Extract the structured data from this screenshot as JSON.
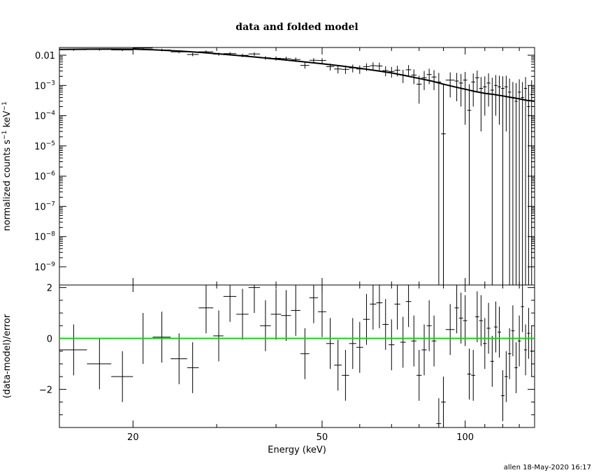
{
  "chart_data": {
    "type": "scatter",
    "title": "data and folded model",
    "xlabel": "Energy (keV)",
    "x_scale": "log",
    "xlim": [
      14,
      140
    ],
    "x_ticks": [
      20,
      50,
      100
    ],
    "footer": "allen 18-May-2020 16:17",
    "colors": {
      "data": "#000000",
      "model": "#000000",
      "zero_line": "#00dd00"
    },
    "top_panel": {
      "ylabel": "normalized counts s^-1 keV^-1",
      "ylabel_parts": {
        "base": "normalized counts s",
        "exp1": "−1",
        "mid": " keV",
        "exp2": "−1"
      },
      "y_scale": "log",
      "ylim": [
        2.5e-10,
        0.018
      ],
      "y_ticks": [
        {
          "value": 0.01,
          "label": "0.01"
        },
        {
          "value": 0.001,
          "base": "10",
          "exp": "−3"
        },
        {
          "value": 0.0001,
          "base": "10",
          "exp": "−4"
        },
        {
          "value": 1e-05,
          "base": "10",
          "exp": "−5"
        },
        {
          "value": 1e-06,
          "base": "10",
          "exp": "−6"
        },
        {
          "value": 1e-07,
          "base": "10",
          "exp": "−7"
        },
        {
          "value": 1e-08,
          "base": "10",
          "exp": "−8"
        },
        {
          "value": 1e-09,
          "base": "10",
          "exp": "−9"
        }
      ],
      "model": {
        "x": [
          14,
          16,
          18,
          20,
          22,
          25,
          28,
          30,
          35,
          40,
          45,
          50,
          55,
          60,
          65,
          70,
          75,
          80,
          85,
          90,
          95,
          100,
          105,
          110,
          115,
          120,
          125,
          130,
          135,
          140
        ],
        "y": [
          0.0155,
          0.0158,
          0.016,
          0.0158,
          0.0152,
          0.0138,
          0.0122,
          0.0112,
          0.0091,
          0.0075,
          0.0062,
          0.0052,
          0.0044,
          0.0037,
          0.0031,
          0.0026,
          0.0021,
          0.0017,
          0.0014,
          0.0011,
          0.0009,
          0.00075,
          0.00063,
          0.00055,
          0.0005,
          0.00045,
          0.0004,
          0.00036,
          0.00032,
          0.0003
        ]
      },
      "points": [
        {
          "x": 15.0,
          "xlo": 14.0,
          "xhi": 16.0,
          "y": 0.0152,
          "ylo": 0.0139,
          "yhi": 0.0166
        },
        {
          "x": 17.0,
          "xlo": 16.0,
          "xhi": 18.0,
          "y": 0.0155,
          "ylo": 0.0142,
          "yhi": 0.0168
        },
        {
          "x": 19.0,
          "xlo": 18.0,
          "xhi": 20.0,
          "y": 0.0149,
          "ylo": 0.0136,
          "yhi": 0.0162
        },
        {
          "x": 21.0,
          "xlo": 20.0,
          "xhi": 22.0,
          "y": 0.0172,
          "ylo": 0.0158,
          "yhi": 0.0186
        },
        {
          "x": 23.0,
          "xlo": 22.0,
          "xhi": 24.0,
          "y": 0.0149,
          "ylo": 0.0135,
          "yhi": 0.0163
        },
        {
          "x": 25.0,
          "xlo": 24.0,
          "xhi": 26.0,
          "y": 0.0129,
          "ylo": 0.0116,
          "yhi": 0.0142
        },
        {
          "x": 26.7,
          "xlo": 26.0,
          "xhi": 27.5,
          "y": 0.0106,
          "ylo": 0.0093,
          "yhi": 0.0119
        },
        {
          "x": 28.5,
          "xlo": 27.5,
          "xhi": 29.5,
          "y": 0.013,
          "ylo": 0.0116,
          "yhi": 0.0144
        },
        {
          "x": 30.3,
          "xlo": 29.5,
          "xhi": 31.0,
          "y": 0.0109,
          "ylo": 0.0096,
          "yhi": 0.0122
        },
        {
          "x": 32.0,
          "xlo": 31.0,
          "xhi": 33.0,
          "y": 0.0113,
          "ylo": 0.0099,
          "yhi": 0.0127
        },
        {
          "x": 34.0,
          "xlo": 33.0,
          "xhi": 35.0,
          "y": 0.0099,
          "ylo": 0.0086,
          "yhi": 0.0112
        },
        {
          "x": 36.0,
          "xlo": 35.0,
          "xhi": 37.0,
          "y": 0.011,
          "ylo": 0.0096,
          "yhi": 0.0124
        },
        {
          "x": 38.0,
          "xlo": 37.0,
          "xhi": 39.0,
          "y": 0.0082,
          "ylo": 0.0071,
          "yhi": 0.0093
        },
        {
          "x": 40.0,
          "xlo": 39.0,
          "xhi": 41.0,
          "y": 0.0079,
          "ylo": 0.0067,
          "yhi": 0.0091
        },
        {
          "x": 42.0,
          "xlo": 41.0,
          "xhi": 43.0,
          "y": 0.0077,
          "ylo": 0.0065,
          "yhi": 0.0089
        },
        {
          "x": 44.0,
          "xlo": 43.0,
          "xhi": 45.0,
          "y": 0.0072,
          "ylo": 0.006,
          "yhi": 0.0084
        },
        {
          "x": 46.0,
          "xlo": 45.0,
          "xhi": 47.0,
          "y": 0.0046,
          "ylo": 0.0036,
          "yhi": 0.0057
        },
        {
          "x": 48.0,
          "xlo": 47.0,
          "xhi": 49.0,
          "y": 0.0068,
          "ylo": 0.0056,
          "yhi": 0.008
        },
        {
          "x": 50.0,
          "xlo": 49.0,
          "xhi": 51.0,
          "y": 0.0067,
          "ylo": 0.0054,
          "yhi": 0.008
        },
        {
          "x": 52.0,
          "xlo": 51.0,
          "xhi": 53.0,
          "y": 0.0042,
          "ylo": 0.0031,
          "yhi": 0.0053
        },
        {
          "x": 54.0,
          "xlo": 53.0,
          "xhi": 55.0,
          "y": 0.0035,
          "ylo": 0.0025,
          "yhi": 0.0046
        },
        {
          "x": 56.0,
          "xlo": 55.0,
          "xhi": 57.0,
          "y": 0.0034,
          "ylo": 0.0024,
          "yhi": 0.0045
        },
        {
          "x": 58.0,
          "xlo": 57.0,
          "xhi": 59.0,
          "y": 0.0038,
          "ylo": 0.0027,
          "yhi": 0.0049
        },
        {
          "x": 60.0,
          "xlo": 59.0,
          "xhi": 61.0,
          "y": 0.0035,
          "ylo": 0.0024,
          "yhi": 0.0046
        },
        {
          "x": 62.0,
          "xlo": 61.0,
          "xhi": 63.0,
          "y": 0.0042,
          "ylo": 0.003,
          "yhi": 0.0054
        },
        {
          "x": 64.0,
          "xlo": 63.0,
          "xhi": 65.0,
          "y": 0.0045,
          "ylo": 0.0032,
          "yhi": 0.0058
        },
        {
          "x": 66.0,
          "xlo": 65.0,
          "xhi": 67.0,
          "y": 0.0044,
          "ylo": 0.0031,
          "yhi": 0.0057
        },
        {
          "x": 68.0,
          "xlo": 67.0,
          "xhi": 69.0,
          "y": 0.0031,
          "ylo": 0.002,
          "yhi": 0.0043
        },
        {
          "x": 70.0,
          "xlo": 69.0,
          "xhi": 71.0,
          "y": 0.0029,
          "ylo": 0.0018,
          "yhi": 0.0041
        },
        {
          "x": 72.0,
          "xlo": 71.0,
          "xhi": 73.0,
          "y": 0.0032,
          "ylo": 0.002,
          "yhi": 0.0045
        },
        {
          "x": 74.0,
          "xlo": 73.0,
          "xhi": 75.0,
          "y": 0.0022,
          "ylo": 0.0012,
          "yhi": 0.0033
        },
        {
          "x": 76.0,
          "xlo": 75.0,
          "xhi": 77.0,
          "y": 0.0033,
          "ylo": 0.002,
          "yhi": 0.0047
        },
        {
          "x": 78.0,
          "xlo": 77.0,
          "xhi": 79.0,
          "y": 0.0022,
          "ylo": 0.0011,
          "yhi": 0.0034
        },
        {
          "x": 80.0,
          "xlo": 79.0,
          "xhi": 81.0,
          "y": 0.0011,
          "ylo": 0.00025,
          "yhi": 0.0021
        },
        {
          "x": 82.0,
          "xlo": 81.0,
          "xhi": 83.0,
          "y": 0.0018,
          "ylo": 0.0007,
          "yhi": 0.003
        },
        {
          "x": 84.0,
          "xlo": 83.0,
          "xhi": 85.0,
          "y": 0.0023,
          "ylo": 0.0011,
          "yhi": 0.0036
        },
        {
          "x": 86.0,
          "xlo": 85.0,
          "xhi": 87.0,
          "y": 0.0019,
          "ylo": 0.0007,
          "yhi": 0.0032
        },
        {
          "x": 88.0,
          "xlo": 87.0,
          "xhi": 89.0,
          "y": 0.0013,
          "ylo": 2.5e-10,
          "yhi": 0.0026
        },
        {
          "x": 90.0,
          "xlo": 89.0,
          "xhi": 91.0,
          "y": 2.5e-05,
          "ylo": 2.5e-10,
          "yhi": 0.0011
        },
        {
          "x": 93.0,
          "xlo": 91.0,
          "xhi": 95.0,
          "y": 0.0015,
          "ylo": 0.0004,
          "yhi": 0.0027
        },
        {
          "x": 96.0,
          "xlo": 95.0,
          "xhi": 97.0,
          "y": 0.0014,
          "ylo": 0.0003,
          "yhi": 0.0026
        },
        {
          "x": 98.0,
          "xlo": 97.0,
          "xhi": 99.0,
          "y": 0.0012,
          "ylo": 0.0002,
          "yhi": 0.0024
        },
        {
          "x": 100.0,
          "xlo": 99.0,
          "xhi": 101.0,
          "y": 0.0015,
          "ylo": 5e-05,
          "yhi": 0.0028
        },
        {
          "x": 102.0,
          "xlo": 101.0,
          "xhi": 103.0,
          "y": 0.00015,
          "ylo": 2.5e-10,
          "yhi": 0.0011
        },
        {
          "x": 104.0,
          "xlo": 103.0,
          "xhi": 105.0,
          "y": 0.0013,
          "ylo": 0.0002,
          "yhi": 0.0025
        },
        {
          "x": 106.0,
          "xlo": 105.0,
          "xhi": 107.0,
          "y": 0.0018,
          "ylo": 0.0006,
          "yhi": 0.0031
        },
        {
          "x": 108.0,
          "xlo": 107.0,
          "xhi": 109.0,
          "y": 0.0008,
          "ylo": 3e-05,
          "yhi": 0.0019
        },
        {
          "x": 110.0,
          "xlo": 109.0,
          "xhi": 111.0,
          "y": 0.0009,
          "ylo": 0.0001,
          "yhi": 0.002
        },
        {
          "x": 112.0,
          "xlo": 111.0,
          "xhi": 113.0,
          "y": 0.0012,
          "ylo": 0.0002,
          "yhi": 0.0025
        },
        {
          "x": 114.0,
          "xlo": 113.0,
          "xhi": 115.0,
          "y": 0.0007,
          "ylo": 2.5e-10,
          "yhi": 0.0018
        },
        {
          "x": 116.0,
          "xlo": 115.0,
          "xhi": 117.0,
          "y": 0.001,
          "ylo": 0.0001,
          "yhi": 0.0022
        },
        {
          "x": 118.0,
          "xlo": 117.0,
          "xhi": 119.0,
          "y": 0.0009,
          "ylo": 5e-05,
          "yhi": 0.0021
        },
        {
          "x": 120.0,
          "xlo": 119.0,
          "xhi": 121.0,
          "y": 0.0008,
          "ylo": 2.5e-10,
          "yhi": 0.002
        },
        {
          "x": 122.0,
          "xlo": 121.0,
          "xhi": 123.0,
          "y": 0.0009,
          "ylo": 3e-05,
          "yhi": 0.0021
        },
        {
          "x": 124.0,
          "xlo": 123.0,
          "xhi": 125.0,
          "y": 0.0006,
          "ylo": 2.5e-10,
          "yhi": 0.0017
        },
        {
          "x": 126.0,
          "xlo": 125.0,
          "xhi": 127.0,
          "y": 0.0004,
          "ylo": 2.5e-10,
          "yhi": 0.0013
        },
        {
          "x": 128.0,
          "xlo": 127.0,
          "xhi": 129.0,
          "y": 0.0003,
          "ylo": 2.5e-10,
          "yhi": 0.0012
        },
        {
          "x": 130.0,
          "xlo": 129.0,
          "xhi": 131.0,
          "y": 0.0006,
          "ylo": 2.5e-10,
          "yhi": 0.0016
        },
        {
          "x": 132.0,
          "xlo": 131.0,
          "xhi": 133.0,
          "y": 0.0004,
          "ylo": 2.5e-10,
          "yhi": 0.0013
        },
        {
          "x": 134.0,
          "xlo": 133.0,
          "xhi": 135.0,
          "y": 0.0008,
          "ylo": 2.5e-10,
          "yhi": 0.0019
        },
        {
          "x": 136.0,
          "xlo": 135.0,
          "xhi": 137.0,
          "y": 0.0002,
          "ylo": 2.5e-10,
          "yhi": 0.001
        },
        {
          "x": 138.0,
          "xlo": 137.0,
          "xhi": 139.0,
          "y": 0.0005,
          "ylo": 2.5e-10,
          "yhi": 0.0015
        }
      ]
    },
    "bottom_panel": {
      "ylabel": "(data-model)/error",
      "y_scale": "linear",
      "ylim": [
        -3.5,
        2.1
      ],
      "y_ticks": [
        {
          "value": 2,
          "label": "2"
        },
        {
          "value": 0,
          "label": "0"
        },
        {
          "value": -2,
          "label": "−2"
        }
      ],
      "zero_line": 0,
      "points": [
        {
          "x": 15.0,
          "xlo": 14.0,
          "xhi": 16.0,
          "y": -0.45
        },
        {
          "x": 17.0,
          "xlo": 16.0,
          "xhi": 18.0,
          "y": -1.0
        },
        {
          "x": 19.0,
          "xlo": 18.0,
          "xhi": 20.0,
          "y": -1.5
        },
        {
          "x": 21.0,
          "xlo": 20.0,
          "xhi": 22.0,
          "y": 0.0
        },
        {
          "x": 23.0,
          "xlo": 22.0,
          "xhi": 24.0,
          "y": 0.05
        },
        {
          "x": 25.0,
          "xlo": 24.0,
          "xhi": 26.0,
          "y": -0.8
        },
        {
          "x": 26.7,
          "xlo": 26.0,
          "xhi": 27.5,
          "y": -1.15
        },
        {
          "x": 28.5,
          "xlo": 27.5,
          "xhi": 29.5,
          "y": 1.2
        },
        {
          "x": 30.3,
          "xlo": 29.5,
          "xhi": 31.0,
          "y": 0.1
        },
        {
          "x": 32.0,
          "xlo": 31.0,
          "xhi": 33.0,
          "y": 1.65
        },
        {
          "x": 34.0,
          "xlo": 33.0,
          "xhi": 35.0,
          "y": 0.95
        },
        {
          "x": 36.0,
          "xlo": 35.0,
          "xhi": 37.0,
          "y": 2.0
        },
        {
          "x": 38.0,
          "xlo": 37.0,
          "xhi": 39.0,
          "y": 0.5
        },
        {
          "x": 40.0,
          "xlo": 39.0,
          "xhi": 41.0,
          "y": 0.95
        },
        {
          "x": 42.0,
          "xlo": 41.0,
          "xhi": 43.0,
          "y": 0.9
        },
        {
          "x": 44.0,
          "xlo": 43.0,
          "xhi": 45.0,
          "y": 1.1
        },
        {
          "x": 46.0,
          "xlo": 45.0,
          "xhi": 47.0,
          "y": -0.6
        },
        {
          "x": 48.0,
          "xlo": 47.0,
          "xhi": 49.0,
          "y": 1.6
        },
        {
          "x": 50.0,
          "xlo": 49.0,
          "xhi": 51.0,
          "y": 1.05
        },
        {
          "x": 52.0,
          "xlo": 51.0,
          "xhi": 53.0,
          "y": -0.2
        },
        {
          "x": 54.0,
          "xlo": 53.0,
          "xhi": 55.0,
          "y": -1.05
        },
        {
          "x": 56.0,
          "xlo": 55.0,
          "xhi": 57.0,
          "y": -1.45
        },
        {
          "x": 58.0,
          "xlo": 57.0,
          "xhi": 59.0,
          "y": -0.2
        },
        {
          "x": 60.0,
          "xlo": 59.0,
          "xhi": 61.0,
          "y": -0.35
        },
        {
          "x": 62.0,
          "xlo": 61.0,
          "xhi": 63.0,
          "y": 0.75
        },
        {
          "x": 64.0,
          "xlo": 63.0,
          "xhi": 65.0,
          "y": 1.35
        },
        {
          "x": 66.0,
          "xlo": 65.0,
          "xhi": 67.0,
          "y": 1.4
        },
        {
          "x": 68.0,
          "xlo": 67.0,
          "xhi": 69.0,
          "y": 0.55
        },
        {
          "x": 70.0,
          "xlo": 69.0,
          "xhi": 71.0,
          "y": -0.25
        },
        {
          "x": 72.0,
          "xlo": 71.0,
          "xhi": 73.0,
          "y": 1.35
        },
        {
          "x": 74.0,
          "xlo": 73.0,
          "xhi": 75.0,
          "y": -0.15
        },
        {
          "x": 76.0,
          "xlo": 75.0,
          "xhi": 77.0,
          "y": 1.45
        },
        {
          "x": 78.0,
          "xlo": 77.0,
          "xhi": 79.0,
          "y": -0.1
        },
        {
          "x": 80.0,
          "xlo": 79.0,
          "xhi": 81.0,
          "y": -1.45
        },
        {
          "x": 82.0,
          "xlo": 81.0,
          "xhi": 83.0,
          "y": -0.45
        },
        {
          "x": 84.0,
          "xlo": 83.0,
          "xhi": 85.0,
          "y": 0.5
        },
        {
          "x": 86.0,
          "xlo": 85.0,
          "xhi": 87.0,
          "y": -0.1
        },
        {
          "x": 88.0,
          "xlo": 87.0,
          "xhi": 89.0,
          "y": -3.35
        },
        {
          "x": 90.0,
          "xlo": 89.0,
          "xhi": 91.0,
          "y": -2.5
        },
        {
          "x": 93.0,
          "xlo": 91.0,
          "xhi": 95.0,
          "y": 0.35
        },
        {
          "x": 96.0,
          "xlo": 95.0,
          "xhi": 97.0,
          "y": 1.2
        },
        {
          "x": 98.0,
          "xlo": 97.0,
          "xhi": 99.0,
          "y": 0.8
        },
        {
          "x": 100.0,
          "xlo": 99.0,
          "xhi": 101.0,
          "y": 0.7
        },
        {
          "x": 102.0,
          "xlo": 101.0,
          "xhi": 103.0,
          "y": -1.4
        },
        {
          "x": 104.0,
          "xlo": 103.0,
          "xhi": 105.0,
          "y": -1.45
        },
        {
          "x": 106.0,
          "xlo": 105.0,
          "xhi": 107.0,
          "y": 0.85
        },
        {
          "x": 108.0,
          "xlo": 107.0,
          "xhi": 109.0,
          "y": 0.7
        },
        {
          "x": 110.0,
          "xlo": 109.0,
          "xhi": 111.0,
          "y": -0.2
        },
        {
          "x": 112.0,
          "xlo": 111.0,
          "xhi": 113.0,
          "y": 0.4
        },
        {
          "x": 114.0,
          "xlo": 113.0,
          "xhi": 115.0,
          "y": -0.9
        },
        {
          "x": 116.0,
          "xlo": 115.0,
          "xhi": 117.0,
          "y": 0.45
        },
        {
          "x": 118.0,
          "xlo": 117.0,
          "xhi": 119.0,
          "y": 0.25
        },
        {
          "x": 120.0,
          "xlo": 119.0,
          "xhi": 121.0,
          "y": -2.25
        },
        {
          "x": 122.0,
          "xlo": 121.0,
          "xhi": 123.0,
          "y": -1.5
        },
        {
          "x": 124.0,
          "xlo": 123.0,
          "xhi": 125.0,
          "y": -0.6
        },
        {
          "x": 126.0,
          "xlo": 125.0,
          "xhi": 127.0,
          "y": 0.3
        },
        {
          "x": 128.0,
          "xlo": 127.0,
          "xhi": 129.0,
          "y": -1.15
        },
        {
          "x": 130.0,
          "xlo": 129.0,
          "xhi": 131.0,
          "y": -0.1
        },
        {
          "x": 132.0,
          "xlo": 131.0,
          "xhi": 133.0,
          "y": 1.25
        },
        {
          "x": 134.0,
          "xlo": 133.0,
          "xhi": 135.0,
          "y": -0.45
        },
        {
          "x": 136.0,
          "xlo": 135.0,
          "xhi": 137.0,
          "y": 0.2
        },
        {
          "x": 138.0,
          "xlo": 137.0,
          "xhi": 139.0,
          "y": -0.5
        }
      ]
    }
  }
}
